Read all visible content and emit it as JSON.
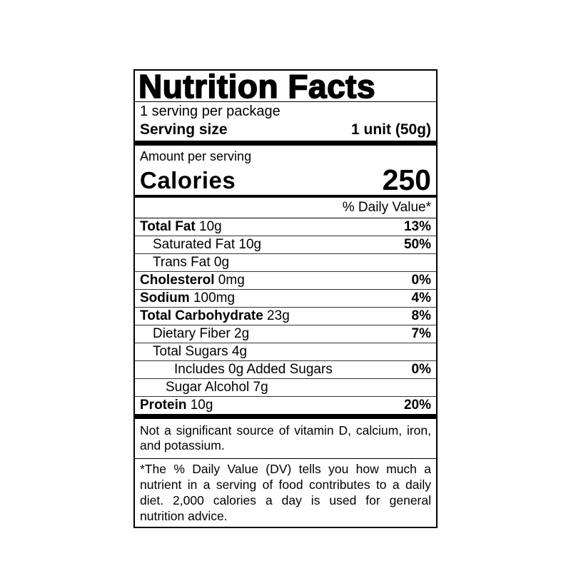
{
  "label": {
    "title": "Nutrition Facts",
    "servings_per_container": "1 serving per package",
    "serving_size_label": "Serving size",
    "serving_size_value": "1 unit (50g)",
    "amount_per_serving": "Amount per serving",
    "calories_label": "Calories",
    "calories_value": "250",
    "daily_value_header": "% Daily Value*",
    "rows": [
      {
        "name": "Total Fat",
        "amount": "10g",
        "dv": "13%",
        "bold": true,
        "indent": 0
      },
      {
        "name": "Saturated Fat",
        "amount": "10g",
        "dv": "50%",
        "bold": false,
        "indent": 1
      },
      {
        "name": "Trans Fat",
        "amount": "0g",
        "dv": "",
        "bold": false,
        "indent": 1
      },
      {
        "name": "Cholesterol",
        "amount": "0mg",
        "dv": "0%",
        "bold": true,
        "indent": 0
      },
      {
        "name": "Sodium",
        "amount": "100mg",
        "dv": "4%",
        "bold": true,
        "indent": 0
      },
      {
        "name": "Total Carbohydrate",
        "amount": "23g",
        "dv": "8%",
        "bold": true,
        "indent": 0
      },
      {
        "name": "Dietary Fiber",
        "amount": "2g",
        "dv": "7%",
        "bold": false,
        "indent": 1
      },
      {
        "name": "Total Sugars",
        "amount": "4g",
        "dv": "",
        "bold": false,
        "indent": 1
      },
      {
        "name": "Includes 0g Added Sugars",
        "amount": "",
        "dv": "0%",
        "bold": false,
        "indent": 3
      },
      {
        "name": "Sugar Alcohol",
        "amount": "7g",
        "dv": "",
        "bold": false,
        "indent": 2
      },
      {
        "name": "Protein",
        "amount": "10g",
        "dv": "20%",
        "bold": true,
        "indent": 0
      }
    ],
    "not_significant": "Not a significant source of vitamin D, calcium, iron, and potassium.",
    "footnote": "*The % Daily Value (DV) tells you how much a nutrient in a serving of food contributes to a daily diet. 2,000 calories a day is used for general nutrition advice."
  },
  "colors": {
    "text": "#000000",
    "background": "#ffffff",
    "border": "#000000"
  }
}
